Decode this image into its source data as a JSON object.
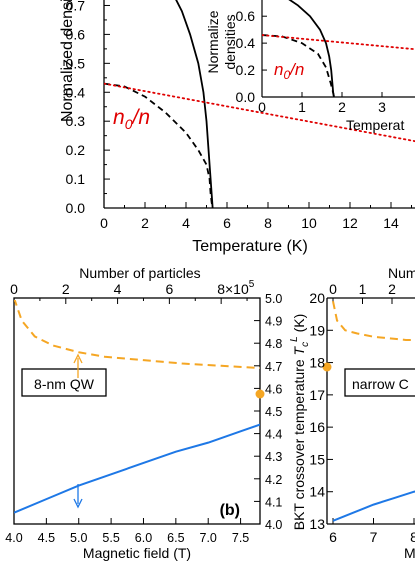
{
  "chart_data": [
    {
      "id": "top-main",
      "type": "line",
      "xlabel": "Temperature (K)",
      "ylabel": "Normalized densit",
      "xlim": [
        0,
        16
      ],
      "ylim": [
        0,
        0.75
      ],
      "x_ticks": [
        "0",
        "2",
        "4",
        "6",
        "8",
        "10",
        "12",
        "14"
      ],
      "y_ticks": [
        "0.0",
        "0.1",
        "0.2",
        "0.3",
        "0.4",
        "0.5",
        "0.6",
        "0.7"
      ],
      "annotation": "n0/n",
      "series": [
        {
          "style": "solid-black",
          "points": [
            [
              3.3,
              0.75
            ],
            [
              3.8,
              0.68
            ],
            [
              4.2,
              0.6
            ],
            [
              4.6,
              0.5
            ],
            [
              4.85,
              0.4
            ],
            [
              5.0,
              0.3
            ],
            [
              5.1,
              0.2
            ],
            [
              5.2,
              0.1
            ],
            [
              5.25,
              0.05
            ],
            [
              5.28,
              0.02
            ],
            [
              5.3,
              0.0
            ]
          ]
        },
        {
          "style": "dashed-black",
          "points": [
            [
              0,
              0.43
            ],
            [
              1,
              0.42
            ],
            [
              2,
              0.385
            ],
            [
              3,
              0.33
            ],
            [
              4,
              0.26
            ],
            [
              4.6,
              0.2
            ],
            [
              5.0,
              0.15
            ],
            [
              5.15,
              0.1
            ],
            [
              5.2,
              0.05
            ],
            [
              5.25,
              0.02
            ],
            [
              5.3,
              0.0
            ]
          ]
        },
        {
          "style": "dotted-red",
          "points": [
            [
              0,
              0.43
            ],
            [
              16,
              0.22
            ]
          ]
        }
      ]
    },
    {
      "id": "top-inset",
      "type": "line",
      "xlabel": "Temperat",
      "ylabel": "Normalize densities",
      "xlim": [
        0,
        4
      ],
      "ylim": [
        0,
        0.75
      ],
      "x_ticks": [
        "0",
        "1",
        "2",
        "3"
      ],
      "y_ticks": [
        "0.0",
        "0.2",
        "0.4",
        "0.6"
      ],
      "annotation": "n0/n",
      "series": [
        {
          "style": "solid-black",
          "points": [
            [
              0.55,
              0.75
            ],
            [
              0.9,
              0.68
            ],
            [
              1.2,
              0.6
            ],
            [
              1.45,
              0.5
            ],
            [
              1.6,
              0.4
            ],
            [
              1.68,
              0.3
            ],
            [
              1.73,
              0.2
            ],
            [
              1.76,
              0.1
            ],
            [
              1.78,
              0.03
            ],
            [
              1.8,
              0.0
            ]
          ]
        },
        {
          "style": "dashed-black",
          "points": [
            [
              0,
              0.46
            ],
            [
              0.5,
              0.45
            ],
            [
              1.0,
              0.4
            ],
            [
              1.4,
              0.32
            ],
            [
              1.6,
              0.22
            ],
            [
              1.72,
              0.1
            ],
            [
              1.78,
              0.03
            ],
            [
              1.8,
              0.0
            ]
          ]
        },
        {
          "style": "dotted-red",
          "points": [
            [
              0,
              0.46
            ],
            [
              4,
              0.35
            ]
          ]
        }
      ]
    },
    {
      "id": "panel-b",
      "type": "line",
      "xlabel": "Magnetic field (T)",
      "top_xlabel": "Number of particles",
      "top_multiplier": "×10",
      "top_multiplier_exp": "5",
      "ylabel_right": "BKT crossover temperature",
      "ylabel_right_symbol": "T",
      "ylabel_right_sub": "c",
      "ylabel_right_sup": "L",
      "ylabel_right_unit": "(K)",
      "xlim": [
        4.0,
        7.8
      ],
      "ylim": [
        4.0,
        5.0
      ],
      "top_xlim": [
        0,
        9.5
      ],
      "x_ticks": [
        "4.0",
        "4.5",
        "5.0",
        "5.5",
        "6.0",
        "6.5",
        "7.0",
        "7.5"
      ],
      "top_ticks": [
        "0",
        "2",
        "4",
        "6",
        "8"
      ],
      "y_ticks_right": [
        "4.0",
        "4.1",
        "4.2",
        "4.3",
        "4.4",
        "4.5",
        "4.6",
        "4.7",
        "4.8",
        "4.9",
        "5.0"
      ],
      "label_box": "8-nm QW",
      "panel_label": "(b)",
      "colors": {
        "orange": "#f5a623",
        "blue": "#1e78e6"
      },
      "series": [
        {
          "style": "dashed-orange",
          "axis": "top",
          "points": [
            [
              0,
              5.0
            ],
            [
              0.3,
              4.9
            ],
            [
              0.8,
              4.83
            ],
            [
              1.5,
              4.79
            ],
            [
              2.5,
              4.76
            ],
            [
              3.5,
              4.74
            ],
            [
              5,
              4.725
            ],
            [
              6.5,
              4.71
            ],
            [
              8,
              4.7
            ],
            [
              9.5,
              4.69
            ]
          ]
        },
        {
          "style": "solid-blue",
          "axis": "bottom",
          "points": [
            [
              4.0,
              4.05
            ],
            [
              4.5,
              4.11
            ],
            [
              5.0,
              4.17
            ],
            [
              5.5,
              4.22
            ],
            [
              6.0,
              4.27
            ],
            [
              6.5,
              4.32
            ],
            [
              7.0,
              4.36
            ],
            [
              7.5,
              4.41
            ],
            [
              7.8,
              4.44
            ]
          ]
        }
      ]
    },
    {
      "id": "panel-right-partial",
      "type": "line",
      "top_xlabel": "Num",
      "bottom_xlabel": "M",
      "ylim": [
        13,
        20
      ],
      "y_ticks": [
        "13",
        "14",
        "15",
        "16",
        "17",
        "18",
        "19",
        "20"
      ],
      "x_ticks": [
        "6",
        "7",
        "8"
      ],
      "top_ticks": [
        "0",
        "1",
        "2"
      ],
      "label_box": "narrow C",
      "series": [
        {
          "style": "dashed-orange",
          "points": [
            [
              6.0,
              19.9
            ],
            [
              6.1,
              19.3
            ],
            [
              6.3,
              19.0
            ],
            [
              6.6,
              18.9
            ],
            [
              7.0,
              18.8
            ],
            [
              7.4,
              18.75
            ],
            [
              7.8,
              18.7
            ],
            [
              8.2,
              18.7
            ]
          ]
        },
        {
          "style": "solid-blue",
          "points": [
            [
              6.0,
              13.1
            ],
            [
              6.5,
              13.35
            ],
            [
              7.0,
              13.6
            ],
            [
              7.5,
              13.8
            ],
            [
              8.0,
              14.0
            ],
            [
              8.2,
              14.05
            ]
          ]
        }
      ]
    }
  ]
}
